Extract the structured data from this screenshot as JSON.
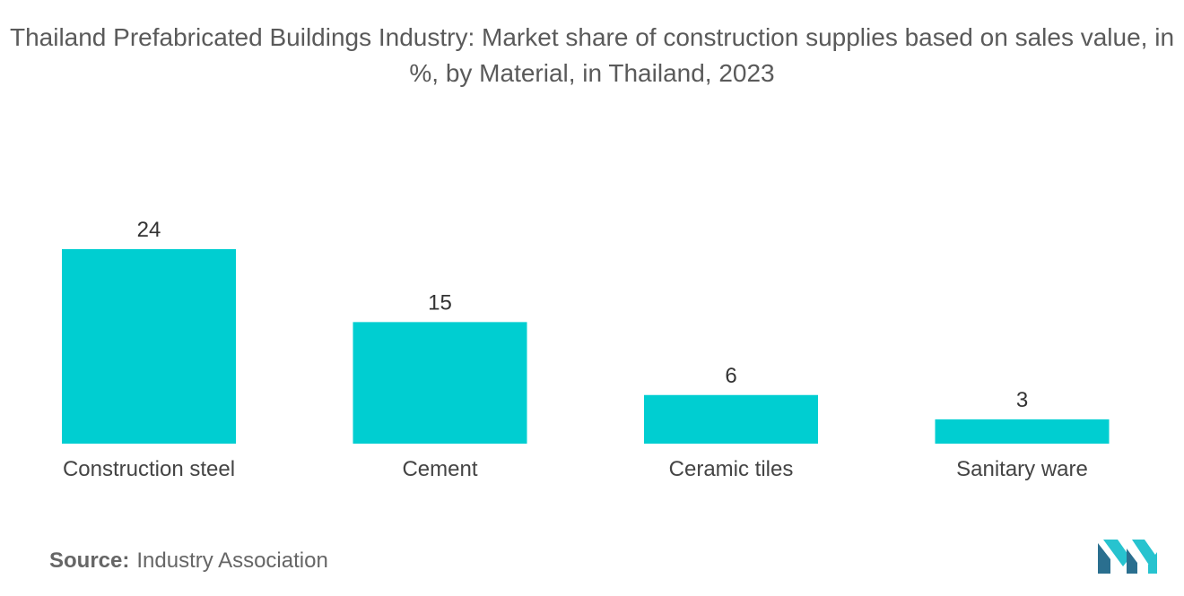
{
  "title": "Thailand Prefabricated Buildings Industry: Market share of construction supplies based on sales value, in %, by Material, in Thailand, 2023",
  "source": {
    "label": "Source:",
    "text": "Industry Association"
  },
  "colors": {
    "bar": "#00CED1",
    "logo_dark": "#2a6f8f",
    "logo_light": "#27c3cf"
  },
  "icons": {
    "logo": "mordor-intelligence-logo"
  },
  "chart_data": {
    "type": "bar",
    "title": "Thailand Prefabricated Buildings Industry: Market share of construction supplies based on sales value, in %, by Material, in Thailand, 2023",
    "categories": [
      "Construction steel",
      "Cement",
      "Ceramic tiles",
      "Sanitary ware"
    ],
    "values": [
      24,
      15,
      6,
      3
    ],
    "data_labels": [
      "24",
      "15",
      "6",
      "3"
    ],
    "xlabel": "",
    "ylabel": "",
    "ylim": [
      0,
      24
    ],
    "grid": false,
    "legend": "none"
  }
}
